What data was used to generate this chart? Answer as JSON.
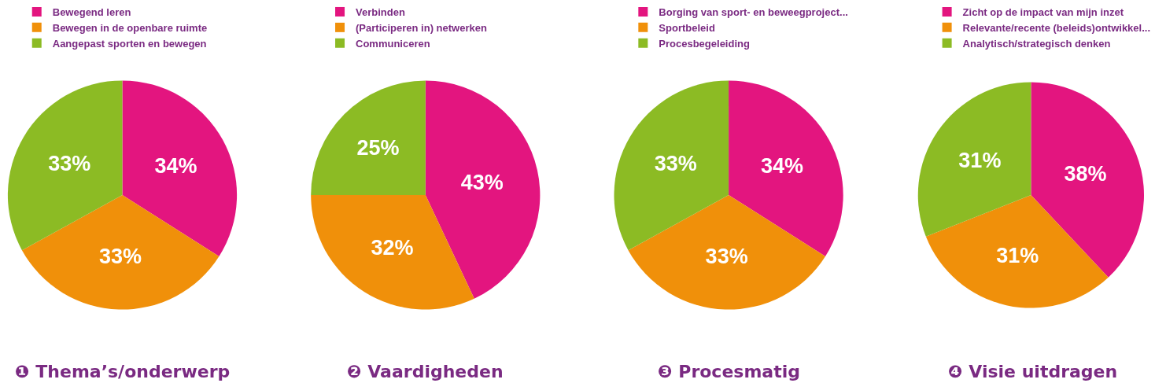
{
  "chart_data": [
    {
      "type": "pie",
      "title": "❶ Thema’s/onderwerp",
      "categories": [
        "Bewegend leren",
        "Bewegen in de openbare ruimte",
        "Aangepast sporten en bewegen"
      ],
      "values": [
        34,
        33,
        33
      ],
      "colors": [
        "#e3157f",
        "#f0900a",
        "#8cbb24"
      ],
      "value_labels": [
        "34%",
        "33%",
        "33%"
      ],
      "legend": "top"
    },
    {
      "type": "pie",
      "title": "❷ Vaardigheden",
      "categories": [
        "Verbinden",
        "(Participeren in) netwerken",
        "Communiceren"
      ],
      "values": [
        43,
        32,
        25
      ],
      "colors": [
        "#e3157f",
        "#f0900a",
        "#8cbb24"
      ],
      "value_labels": [
        "43%",
        "32%",
        "25%"
      ],
      "legend": "top"
    },
    {
      "type": "pie",
      "title": "❸ Procesmatig",
      "categories": [
        "Borging van sport- en beweegproject...",
        "Sportbeleid",
        "Procesbegeleiding"
      ],
      "values": [
        34,
        33,
        33
      ],
      "colors": [
        "#e3157f",
        "#f0900a",
        "#8cbb24"
      ],
      "value_labels": [
        "34%",
        "33%",
        "33%"
      ],
      "legend": "top"
    },
    {
      "type": "pie",
      "title": "❹ Visie uitdragen",
      "categories": [
        "Zicht op de impact van mijn inzet",
        "Relevante/recente (beleids)ontwikkel...",
        "Analytisch/strategisch denken"
      ],
      "values": [
        38,
        31,
        31
      ],
      "colors": [
        "#e3157f",
        "#f0900a",
        "#8cbb24"
      ],
      "value_labels": [
        "38%",
        "31%",
        "31%"
      ],
      "legend": "top"
    }
  ]
}
